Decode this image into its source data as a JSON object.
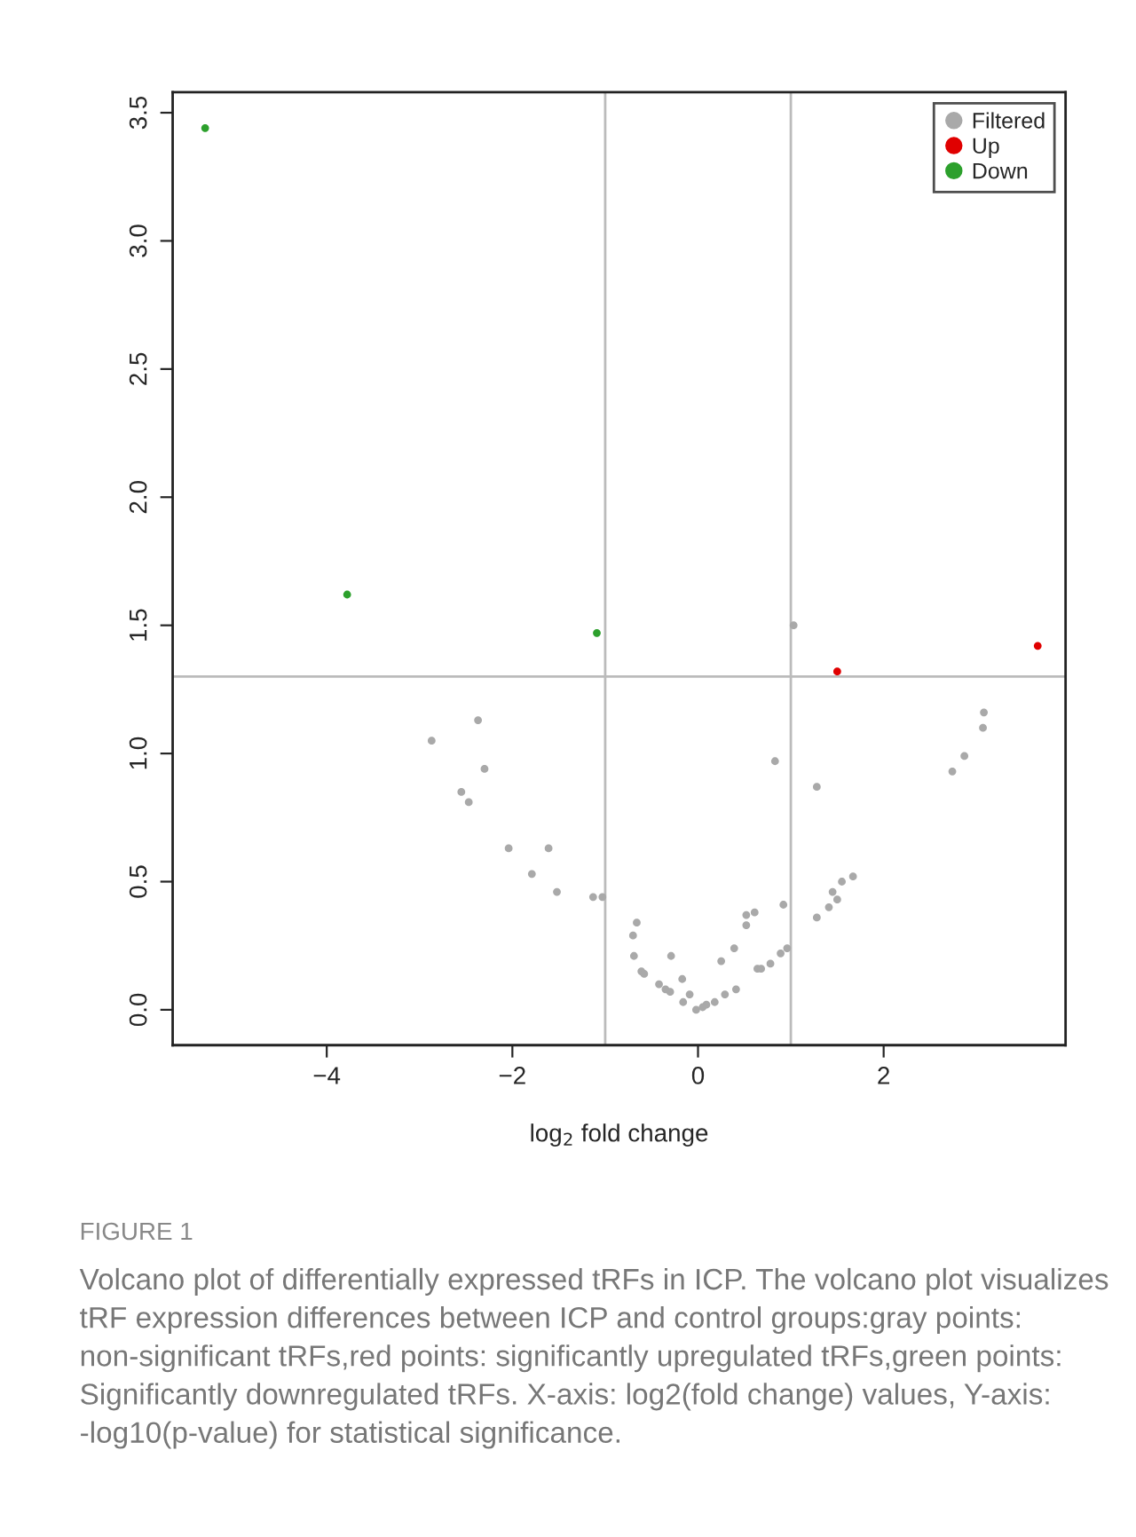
{
  "chart_data": {
    "type": "scatter",
    "xlabel": "log$_{2}$ fold change",
    "xlim": [
      -5.66,
      3.96
    ],
    "ylim": [
      -0.138,
      3.58
    ],
    "xticks": [
      {
        "value": -4,
        "label": "−4"
      },
      {
        "value": -2,
        "label": "−2"
      },
      0,
      2
    ],
    "yticks": [
      {
        "value": 0,
        "label": "0.0"
      },
      {
        "value": 0.5,
        "label": "0.5"
      },
      {
        "value": 1,
        "label": "1.0"
      },
      {
        "value": 1.5,
        "label": "1.5"
      },
      {
        "value": 2,
        "label": "2.0"
      },
      {
        "value": 2.5,
        "label": "2.5"
      },
      {
        "value": 3,
        "label": "3.0"
      },
      {
        "value": 3.5,
        "label": "3.5"
      }
    ],
    "grid": false,
    "legend": "top right",
    "marker": "circle",
    "series": [
      {
        "name": "Filtered",
        "color": "#a9a9a9",
        "x": [
          1.03,
          -2.87,
          -2.37,
          -2.3,
          -2.55,
          -2.47,
          -2.04,
          -1.61,
          -1.79,
          -1.52,
          -1.13,
          -1.03,
          -0.66,
          -0.7,
          -0.69,
          -0.61,
          -0.58,
          -0.29,
          -0.42,
          -0.35,
          -0.3,
          -0.17,
          -0.16,
          -0.09,
          -0.02,
          0.05,
          0.09,
          0.18,
          0.25,
          0.29,
          0.39,
          0.41,
          0.52,
          0.52,
          0.61,
          0.64,
          0.68,
          0.78,
          0.83,
          0.89,
          0.92,
          0.96,
          1.28,
          1.28,
          1.41,
          1.45,
          1.5,
          1.55,
          1.67,
          2.74,
          2.87,
          3.08,
          3.07
        ],
        "values": [
          1.5,
          1.05,
          1.13,
          0.94,
          0.85,
          0.81,
          0.63,
          0.63,
          0.53,
          0.46,
          0.44,
          0.44,
          0.34,
          0.29,
          0.21,
          0.15,
          0.14,
          0.21,
          0.1,
          0.08,
          0.07,
          0.12,
          0.03,
          0.06,
          0.0,
          0.01,
          0.02,
          0.03,
          0.19,
          0.06,
          0.24,
          0.08,
          0.37,
          0.33,
          0.38,
          0.16,
          0.16,
          0.18,
          0.97,
          0.22,
          0.41,
          0.24,
          0.87,
          0.36,
          0.4,
          0.46,
          0.43,
          0.5,
          0.52,
          0.93,
          0.99,
          1.16,
          1.1
        ]
      },
      {
        "name": "Up",
        "color": "#e00000",
        "x": [
          1.5,
          3.66
        ],
        "values": [
          1.32,
          1.42
        ]
      },
      {
        "name": "Down",
        "color": "#2ca02c",
        "x": [
          -5.31,
          -3.78,
          -1.09
        ],
        "values": [
          3.44,
          1.62,
          1.47
        ]
      }
    ],
    "ref_lines": [
      {
        "axis": "x",
        "value": -1,
        "color": "#bbbbbb"
      },
      {
        "axis": "x",
        "value": 1,
        "color": "#bbbbbb"
      },
      {
        "axis": "y",
        "value": 1.3,
        "color": "#bbbbbb"
      }
    ],
    "annotations": [
      "FIGURE 1",
      "Volcano plot of differentially expressed tRFs in ICP. The volcano plot visualizes tRF expression differences between ICP and control groups:gray points: non-significant tRFs,red points: significantly upregulated tRFs,green points: Significantly downregulated tRFs. X-axis: log2(fold change) values, Y-axis: -log10(p-value) for statistical significance."
    ]
  }
}
